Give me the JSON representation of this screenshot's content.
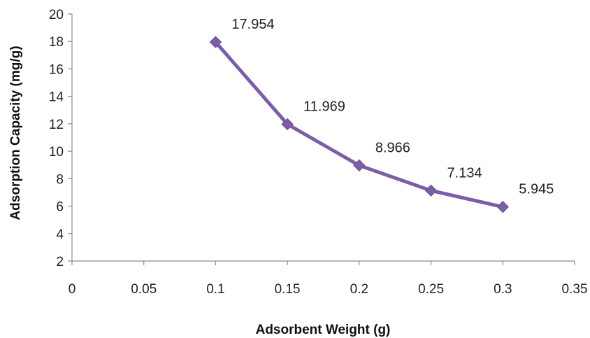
{
  "chart_data": {
    "type": "line",
    "title": "",
    "xlabel": "Adsorbent Weight (g)",
    "ylabel": "Adsorption Capacity  (mg/g)",
    "xlim": [
      0,
      0.35
    ],
    "ylim": [
      2,
      20
    ],
    "x_ticks": [
      "0",
      "0.05",
      "0.1",
      "0.15",
      "0.2",
      "0.25",
      "0.3",
      "0.35"
    ],
    "y_ticks": [
      "2",
      "4",
      "6",
      "8",
      "10",
      "12",
      "14",
      "16",
      "18",
      "20"
    ],
    "grid": false,
    "legend": "none",
    "marker": "diamond",
    "color": "#7b5ea7",
    "series": [
      {
        "x": [
          0.1,
          0.15,
          0.2,
          0.25,
          0.3
        ],
        "values": [
          17.954,
          11.969,
          8.966,
          7.134,
          5.945
        ],
        "data_labels": [
          "17.954",
          "11.969",
          "8.966",
          "7.134",
          "5.945"
        ]
      }
    ]
  }
}
